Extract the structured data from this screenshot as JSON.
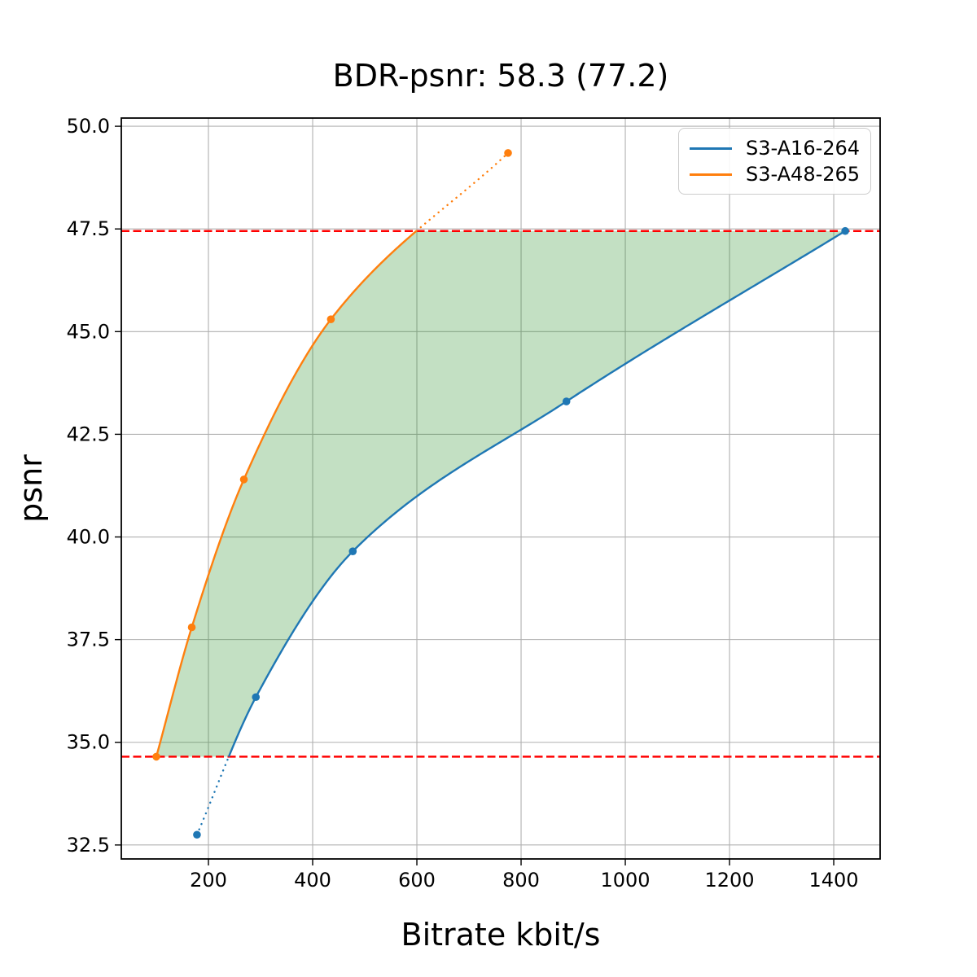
{
  "figure": {
    "background": "#ffffff"
  },
  "chart_data": {
    "type": "line",
    "title": "BDR-psnr: 58.3 (77.2)",
    "xlabel": "Bitrate kbit/s",
    "ylabel": "psnr",
    "xlim": [
      32.8,
      1489
    ],
    "ylim": [
      32.16,
      50.2
    ],
    "xticks": [
      200,
      400,
      600,
      800,
      1000,
      1200,
      1400
    ],
    "xtick_labels": [
      "200",
      "400",
      "600",
      "800",
      "1000",
      "1200",
      "1400"
    ],
    "yticks": [
      32.5,
      35.0,
      37.5,
      40.0,
      42.5,
      45.0,
      47.5,
      50.0
    ],
    "ytick_labels": [
      "32.5",
      "35.0",
      "37.5",
      "40.0",
      "42.5",
      "45.0",
      "47.5",
      "50.0"
    ],
    "grid": true,
    "grid_color": "#b0b0b0",
    "axis_color": "#000000",
    "legend": {
      "position": "upper right",
      "entries": [
        "S3-A16-264",
        "S3-A48-265"
      ]
    },
    "series": [
      {
        "name": "S3-A16-264",
        "color": "#1f77b4",
        "points": [
          [
            178,
            32.75
          ],
          [
            291,
            36.1
          ],
          [
            477,
            39.65
          ],
          [
            887,
            43.3
          ],
          [
            1422,
            47.45
          ]
        ]
      },
      {
        "name": "S3-A48-265",
        "color": "#ff7f0e",
        "points": [
          [
            100,
            34.65
          ],
          [
            168,
            37.8
          ],
          [
            268,
            41.4
          ],
          [
            435,
            45.3
          ],
          [
            775,
            49.35
          ]
        ]
      }
    ],
    "overlap": {
      "lower_psnr": 34.65,
      "upper_psnr": 47.45,
      "line_color": "#ff0000",
      "line_style": "dashed",
      "band_fill_color": "#228B22",
      "band_fill_opacity": 0.27
    }
  }
}
